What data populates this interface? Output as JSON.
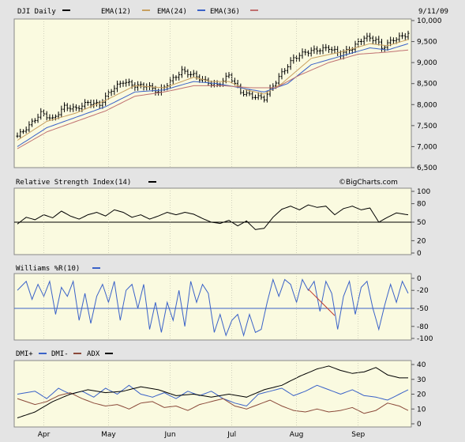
{
  "chart_data": [
    {
      "type": "ohlc",
      "title": "DJI Daily",
      "date": "9/11/09",
      "legend": [
        "EMA(12)",
        "EMA(24)",
        "EMA(36)"
      ],
      "colors": {
        "price": "#000000",
        "ema12": "#c8a060",
        "ema24": "#3a62c8",
        "ema36": "#c07070"
      },
      "ylim": [
        6500,
        10000
      ],
      "yticks": [
        "10,000",
        "9,500",
        "9,000",
        "8,500",
        "8,000",
        "7,500",
        "7,000",
        "6,500"
      ],
      "ytick_values": [
        10000,
        9500,
        9000,
        8500,
        8000,
        7500,
        7000,
        6500
      ],
      "close_keypoints": [
        [
          0,
          7250
        ],
        [
          4,
          7500
        ],
        [
          8,
          7800
        ],
        [
          12,
          7650
        ],
        [
          16,
          7950
        ],
        [
          20,
          7900
        ],
        [
          24,
          8050
        ],
        [
          28,
          8000
        ],
        [
          32,
          8350
        ],
        [
          36,
          8550
        ],
        [
          40,
          8450
        ],
        [
          44,
          8450
        ],
        [
          48,
          8300
        ],
        [
          52,
          8550
        ],
        [
          56,
          8800
        ],
        [
          60,
          8700
        ],
        [
          64,
          8550
        ],
        [
          68,
          8450
        ],
        [
          72,
          8700
        ],
        [
          76,
          8300
        ],
        [
          80,
          8200
        ],
        [
          84,
          8150
        ],
        [
          86,
          8350
        ],
        [
          90,
          8750
        ],
        [
          94,
          9100
        ],
        [
          98,
          9250
        ],
        [
          102,
          9300
        ],
        [
          106,
          9350
        ],
        [
          110,
          9200
        ],
        [
          114,
          9350
        ],
        [
          118,
          9600
        ],
        [
          122,
          9550
        ],
        [
          124,
          9350
        ],
        [
          128,
          9550
        ],
        [
          132,
          9650
        ],
        [
          133,
          9700
        ]
      ],
      "ema12_keypoints": [
        [
          0,
          7150
        ],
        [
          10,
          7600
        ],
        [
          20,
          7800
        ],
        [
          30,
          8100
        ],
        [
          40,
          8450
        ],
        [
          50,
          8400
        ],
        [
          60,
          8650
        ],
        [
          66,
          8550
        ],
        [
          72,
          8550
        ],
        [
          78,
          8350
        ],
        [
          84,
          8250
        ],
        [
          90,
          8500
        ],
        [
          100,
          9100
        ],
        [
          110,
          9250
        ],
        [
          120,
          9450
        ],
        [
          126,
          9400
        ],
        [
          133,
          9550
        ]
      ],
      "ema24_keypoints": [
        [
          0,
          7000
        ],
        [
          10,
          7450
        ],
        [
          20,
          7700
        ],
        [
          30,
          7950
        ],
        [
          40,
          8300
        ],
        [
          50,
          8350
        ],
        [
          60,
          8550
        ],
        [
          68,
          8500
        ],
        [
          76,
          8400
        ],
        [
          84,
          8300
        ],
        [
          92,
          8500
        ],
        [
          100,
          8950
        ],
        [
          110,
          9150
        ],
        [
          120,
          9350
        ],
        [
          126,
          9300
        ],
        [
          133,
          9450
        ]
      ],
      "ema36_keypoints": [
        [
          0,
          6950
        ],
        [
          10,
          7350
        ],
        [
          20,
          7600
        ],
        [
          30,
          7850
        ],
        [
          40,
          8200
        ],
        [
          50,
          8300
        ],
        [
          60,
          8450
        ],
        [
          70,
          8450
        ],
        [
          80,
          8400
        ],
        [
          88,
          8400
        ],
        [
          96,
          8700
        ],
        [
          106,
          9000
        ],
        [
          116,
          9200
        ],
        [
          126,
          9250
        ],
        [
          133,
          9300
        ]
      ]
    },
    {
      "type": "line",
      "title": "Relative Strength Index(14)",
      "watermark": "©BigCharts.com",
      "ylim": [
        0,
        100
      ],
      "yticks": [
        "100",
        "80",
        "50",
        "20",
        "0"
      ],
      "ytick_values": [
        100,
        80,
        50,
        20,
        0
      ],
      "reference_line": 50,
      "keypoints": [
        [
          0,
          47
        ],
        [
          3,
          58
        ],
        [
          6,
          54
        ],
        [
          9,
          62
        ],
        [
          12,
          57
        ],
        [
          15,
          68
        ],
        [
          18,
          60
        ],
        [
          21,
          55
        ],
        [
          24,
          62
        ],
        [
          27,
          66
        ],
        [
          30,
          60
        ],
        [
          33,
          70
        ],
        [
          36,
          66
        ],
        [
          39,
          58
        ],
        [
          42,
          62
        ],
        [
          45,
          55
        ],
        [
          48,
          60
        ],
        [
          51,
          66
        ],
        [
          54,
          62
        ],
        [
          57,
          66
        ],
        [
          60,
          63
        ],
        [
          63,
          56
        ],
        [
          66,
          50
        ],
        [
          69,
          48
        ],
        [
          72,
          53
        ],
        [
          75,
          44
        ],
        [
          78,
          52
        ],
        [
          81,
          38
        ],
        [
          84,
          40
        ],
        [
          87,
          58
        ],
        [
          90,
          71
        ],
        [
          93,
          76
        ],
        [
          96,
          70
        ],
        [
          99,
          78
        ],
        [
          102,
          74
        ],
        [
          105,
          76
        ],
        [
          108,
          62
        ],
        [
          111,
          72
        ],
        [
          114,
          76
        ],
        [
          117,
          70
        ],
        [
          120,
          73
        ],
        [
          123,
          50
        ],
        [
          126,
          58
        ],
        [
          129,
          65
        ],
        [
          133,
          62
        ]
      ]
    },
    {
      "type": "line",
      "title": "Williams %R(10)",
      "color": "#3a62c8",
      "ylim": [
        -100,
        0
      ],
      "yticks": [
        "0",
        "-20",
        "-50",
        "-80",
        "-100"
      ],
      "ytick_values": [
        0,
        -20,
        -50,
        -80,
        -100
      ],
      "reference_line": -50,
      "keypoints": [
        [
          0,
          -20
        ],
        [
          3,
          -5
        ],
        [
          5,
          -35
        ],
        [
          7,
          -10
        ],
        [
          9,
          -30
        ],
        [
          11,
          -5
        ],
        [
          13,
          -60
        ],
        [
          15,
          -15
        ],
        [
          17,
          -30
        ],
        [
          19,
          -5
        ],
        [
          21,
          -70
        ],
        [
          23,
          -25
        ],
        [
          25,
          -75
        ],
        [
          27,
          -30
        ],
        [
          29,
          -10
        ],
        [
          31,
          -40
        ],
        [
          33,
          -5
        ],
        [
          35,
          -70
        ],
        [
          37,
          -20
        ],
        [
          39,
          -10
        ],
        [
          41,
          -50
        ],
        [
          43,
          -10
        ],
        [
          45,
          -85
        ],
        [
          47,
          -40
        ],
        [
          49,
          -90
        ],
        [
          51,
          -40
        ],
        [
          53,
          -70
        ],
        [
          55,
          -20
        ],
        [
          57,
          -80
        ],
        [
          59,
          -5
        ],
        [
          61,
          -40
        ],
        [
          63,
          -10
        ],
        [
          65,
          -25
        ],
        [
          67,
          -90
        ],
        [
          69,
          -60
        ],
        [
          71,
          -95
        ],
        [
          73,
          -70
        ],
        [
          75,
          -60
        ],
        [
          77,
          -95
        ],
        [
          79,
          -60
        ],
        [
          81,
          -90
        ],
        [
          83,
          -85
        ],
        [
          85,
          -40
        ],
        [
          87,
          -2
        ],
        [
          89,
          -30
        ],
        [
          91,
          -2
        ],
        [
          93,
          -10
        ],
        [
          95,
          -40
        ],
        [
          97,
          -2
        ],
        [
          99,
          -20
        ],
        [
          101,
          -5
        ],
        [
          103,
          -55
        ],
        [
          105,
          -5
        ],
        [
          107,
          -25
        ],
        [
          109,
          -85
        ],
        [
          111,
          -30
        ],
        [
          113,
          -5
        ],
        [
          115,
          -60
        ],
        [
          117,
          -15
        ],
        [
          119,
          -5
        ],
        [
          121,
          -50
        ],
        [
          123,
          -85
        ],
        [
          125,
          -45
        ],
        [
          127,
          -10
        ],
        [
          129,
          -40
        ],
        [
          131,
          -5
        ],
        [
          133,
          -25
        ]
      ],
      "annotation_color": "#c0392b"
    },
    {
      "type": "line",
      "legend": [
        "DMI+",
        "DMI-",
        "ADX"
      ],
      "colors": {
        "dmi_plus": "#3a62c8",
        "dmi_minus": "#8b4a3a",
        "adx": "#000000"
      },
      "ylim": [
        0,
        40
      ],
      "yticks": [
        "40",
        "30",
        "20",
        "10",
        "0"
      ],
      "ytick_values": [
        40,
        30,
        20,
        10,
        0
      ],
      "dmi_plus_keypoints": [
        [
          0,
          20
        ],
        [
          6,
          22
        ],
        [
          10,
          17
        ],
        [
          14,
          24
        ],
        [
          18,
          20
        ],
        [
          22,
          22
        ],
        [
          26,
          18
        ],
        [
          30,
          24
        ],
        [
          34,
          20
        ],
        [
          38,
          26
        ],
        [
          42,
          20
        ],
        [
          46,
          18
        ],
        [
          50,
          21
        ],
        [
          54,
          17
        ],
        [
          58,
          22
        ],
        [
          62,
          19
        ],
        [
          66,
          22
        ],
        [
          70,
          17
        ],
        [
          74,
          14
        ],
        [
          78,
          12
        ],
        [
          82,
          20
        ],
        [
          86,
          22
        ],
        [
          90,
          24
        ],
        [
          94,
          19
        ],
        [
          98,
          22
        ],
        [
          102,
          26
        ],
        [
          106,
          23
        ],
        [
          110,
          20
        ],
        [
          114,
          23
        ],
        [
          118,
          19
        ],
        [
          122,
          18
        ],
        [
          126,
          16
        ],
        [
          130,
          20
        ],
        [
          133,
          23
        ]
      ],
      "dmi_minus_keypoints": [
        [
          0,
          17
        ],
        [
          6,
          13
        ],
        [
          10,
          15
        ],
        [
          14,
          19
        ],
        [
          18,
          21
        ],
        [
          22,
          17
        ],
        [
          26,
          14
        ],
        [
          30,
          12
        ],
        [
          34,
          13
        ],
        [
          38,
          10
        ],
        [
          42,
          14
        ],
        [
          46,
          15
        ],
        [
          50,
          11
        ],
        [
          54,
          12
        ],
        [
          58,
          9
        ],
        [
          62,
          13
        ],
        [
          66,
          15
        ],
        [
          70,
          17
        ],
        [
          74,
          12
        ],
        [
          78,
          10
        ],
        [
          82,
          13
        ],
        [
          86,
          16
        ],
        [
          90,
          12
        ],
        [
          94,
          9
        ],
        [
          98,
          8
        ],
        [
          102,
          10
        ],
        [
          106,
          8
        ],
        [
          110,
          9
        ],
        [
          114,
          11
        ],
        [
          118,
          7
        ],
        [
          122,
          9
        ],
        [
          126,
          14
        ],
        [
          130,
          12
        ],
        [
          133,
          9
        ]
      ],
      "adx_keypoints": [
        [
          0,
          4
        ],
        [
          6,
          8
        ],
        [
          12,
          15
        ],
        [
          18,
          20
        ],
        [
          24,
          23
        ],
        [
          30,
          21
        ],
        [
          36,
          22
        ],
        [
          42,
          25
        ],
        [
          48,
          23
        ],
        [
          54,
          19
        ],
        [
          60,
          20
        ],
        [
          66,
          18
        ],
        [
          72,
          20
        ],
        [
          78,
          18
        ],
        [
          84,
          23
        ],
        [
          90,
          26
        ],
        [
          96,
          32
        ],
        [
          102,
          37
        ],
        [
          106,
          39
        ],
        [
          110,
          36
        ],
        [
          114,
          34
        ],
        [
          118,
          35
        ],
        [
          122,
          38
        ],
        [
          126,
          33
        ],
        [
          130,
          31
        ],
        [
          133,
          31
        ]
      ]
    }
  ],
  "x_axis": {
    "months": [
      "Apr",
      "May",
      "Jun",
      "Jul",
      "Aug",
      "Sep"
    ],
    "month_bar_index": [
      9,
      31,
      52,
      73,
      95,
      116
    ]
  }
}
